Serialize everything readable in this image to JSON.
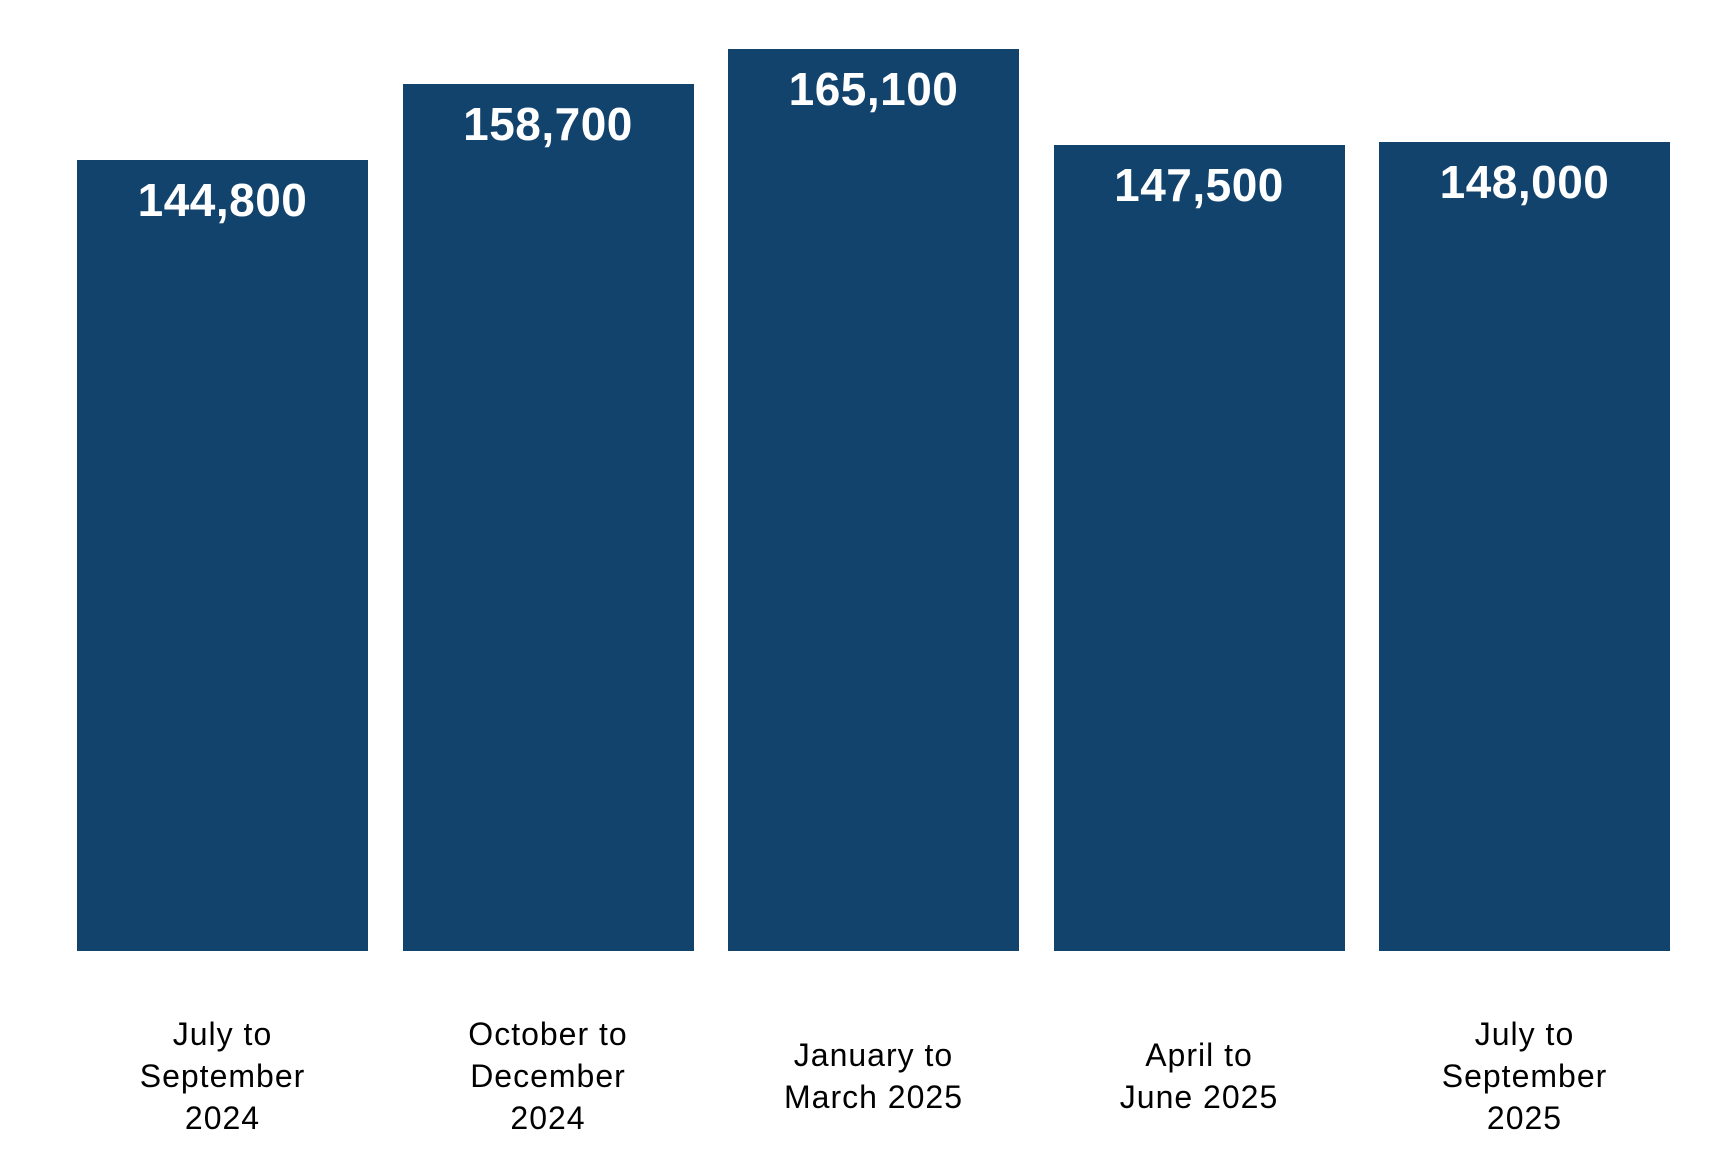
{
  "chart_data": {
    "type": "bar",
    "title": "",
    "categories": [
      "July to September 2024",
      "October to December 2024",
      "January to March 2025",
      "April to June 2025",
      "July to September 2025"
    ],
    "category_label_lines": [
      [
        "July to",
        "September",
        "2024"
      ],
      [
        "October to",
        "December",
        "2024"
      ],
      [
        "January to",
        "March 2025"
      ],
      [
        "April to",
        "June 2025"
      ],
      [
        "July to",
        "September",
        "2025"
      ]
    ],
    "values": [
      144800,
      158700,
      165100,
      147500,
      148000
    ],
    "value_labels": [
      "144,800",
      "158,700",
      "165,100",
      "147,500",
      "148,000"
    ],
    "xlabel": "",
    "ylabel": "",
    "ylim": [
      0,
      174000
    ],
    "grid": "off",
    "legend": "none",
    "orientation": "vertical",
    "value_label_position": "inside-top",
    "bar_color": "#12436D",
    "value_label_color": "#FFFFFF",
    "axis_label_color": "#000000",
    "background_color": "#FFFFFF"
  }
}
